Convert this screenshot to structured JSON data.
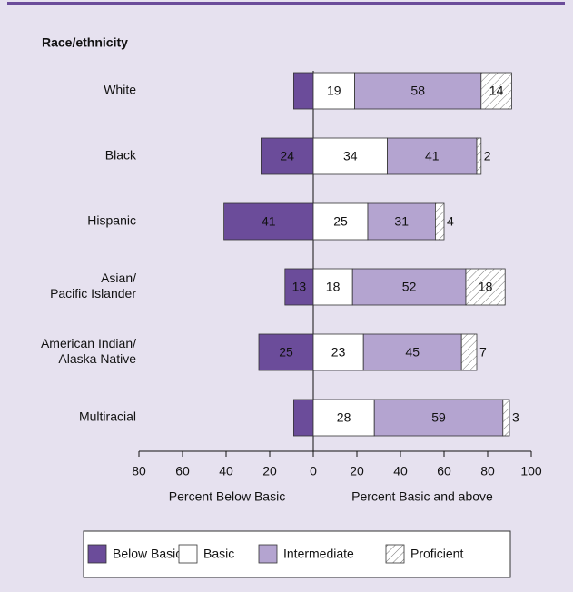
{
  "chart_data": {
    "type": "diverging-stacked-bar",
    "legend_title": null,
    "group_label": "Race/ethnicity",
    "categories": [
      [
        "White"
      ],
      [
        "Black"
      ],
      [
        "Hispanic"
      ],
      [
        "Asian/",
        "Pacific Islander"
      ],
      [
        "American Indian/",
        "Alaska Native"
      ],
      [
        "Multiracial"
      ]
    ],
    "series": [
      {
        "name": "Below Basic",
        "color": "#6b4c9a",
        "side": "left",
        "values": [
          9,
          24,
          41,
          13,
          25,
          9
        ]
      },
      {
        "name": "Basic",
        "color": "#ffffff",
        "side": "right",
        "values": [
          19,
          34,
          25,
          18,
          23,
          28
        ]
      },
      {
        "name": "Intermediate",
        "color": "#b4a4d0",
        "side": "right",
        "values": [
          58,
          41,
          31,
          52,
          45,
          59
        ]
      },
      {
        "name": "Proficient",
        "color": "hatch",
        "side": "right",
        "values": [
          14,
          2,
          4,
          18,
          7,
          3
        ]
      }
    ],
    "xlim": [
      -80,
      100
    ],
    "xticks": [
      {
        "value": -80,
        "label": "80"
      },
      {
        "value": -60,
        "label": "60"
      },
      {
        "value": -40,
        "label": "40"
      },
      {
        "value": -20,
        "label": "20"
      },
      0,
      20,
      40,
      60,
      80,
      100
    ],
    "xlabel_left": "Percent Below Basic",
    "xlabel_right": "Percent Basic and above"
  }
}
